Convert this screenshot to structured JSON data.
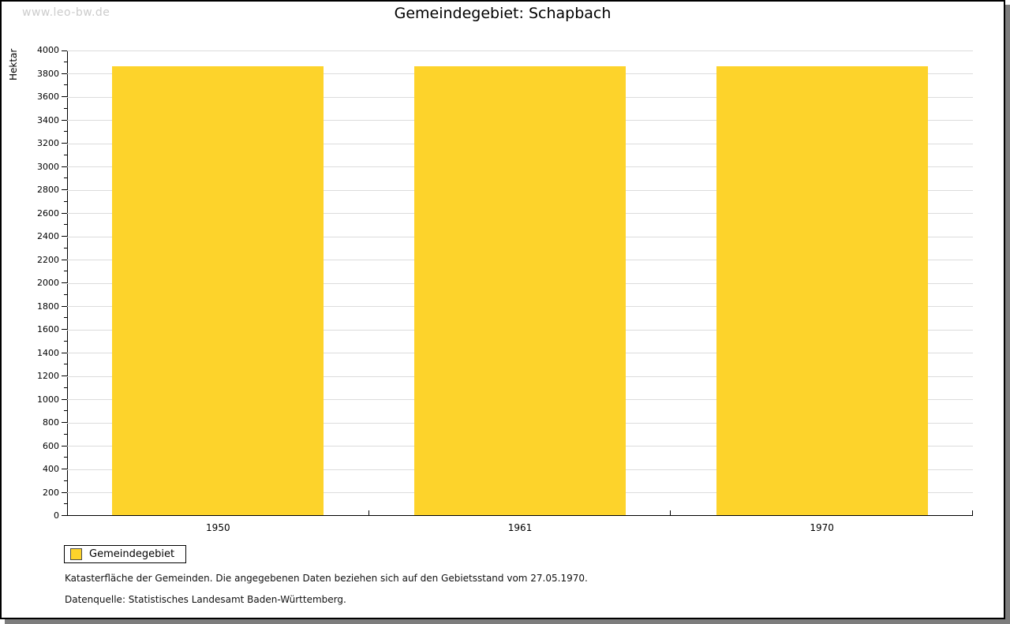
{
  "watermark": "www.leo-bw.de",
  "title": "Gemeindegebiet: Schapbach",
  "chart_data": {
    "type": "bar",
    "title": "Gemeindegebiet: Schapbach",
    "categories": [
      "1950",
      "1961",
      "1970"
    ],
    "series": [
      {
        "name": "Gemeindegebiet",
        "values": [
          3856,
          3856,
          3861
        ]
      }
    ],
    "xlabel": "",
    "ylabel": "Hektar",
    "ylim": [
      0,
      4000
    ],
    "y_major_step": 200,
    "y_minor_step": 100,
    "grid": true,
    "legend_position": "bottom-left",
    "bar_color": "#FDD32B"
  },
  "legend": {
    "label": "Gemeindegebiet",
    "swatch_color": "#FDD32B"
  },
  "footer": {
    "line1": "Katasterfläche der Gemeinden. Die angegebenen Daten beziehen sich auf den Gebietsstand vom 27.05.1970.",
    "line2": "Datenquelle: Statistisches Landesamt Baden-Württemberg."
  },
  "colors": {
    "bar": "#FDD32B",
    "grid": "#DCDCDC",
    "axis": "#000000",
    "watermark": "#CCCCCC",
    "frame_border": "#000000",
    "frame_shadow": "#7D7D7D",
    "background": "#FFFFFF"
  }
}
